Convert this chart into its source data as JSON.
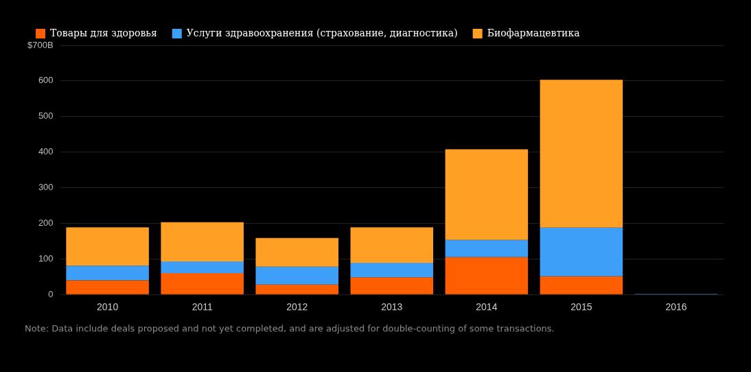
{
  "chart_data": {
    "type": "bar",
    "stacked": true,
    "categories": [
      "2010",
      "2011",
      "2012",
      "2013",
      "2014",
      "2015",
      "2016"
    ],
    "series": [
      {
        "name": "Товары для здоровья",
        "color": "#ff5f00",
        "values": [
          40,
          60,
          28,
          48,
          105,
          51,
          0
        ]
      },
      {
        "name": "Услуги здравоохранения (страхование, диагностика)",
        "color": "#3d9ff8",
        "values": [
          41,
          33,
          50,
          41,
          48,
          137,
          2
        ]
      },
      {
        "name": "Биофармацевтика",
        "color": "#ff9f24",
        "values": [
          108,
          110,
          81,
          100,
          255,
          415,
          0
        ]
      }
    ],
    "ylim": [
      0,
      700
    ],
    "yticks": [
      0,
      100,
      200,
      300,
      400,
      500,
      600,
      {
        "value": 700,
        "label": "$700B"
      }
    ],
    "grid": "y",
    "legend": "top left",
    "annotations": [
      "Note: Data include deals proposed and not yet completed, and are adjusted for double-counting of some transactions."
    ]
  }
}
